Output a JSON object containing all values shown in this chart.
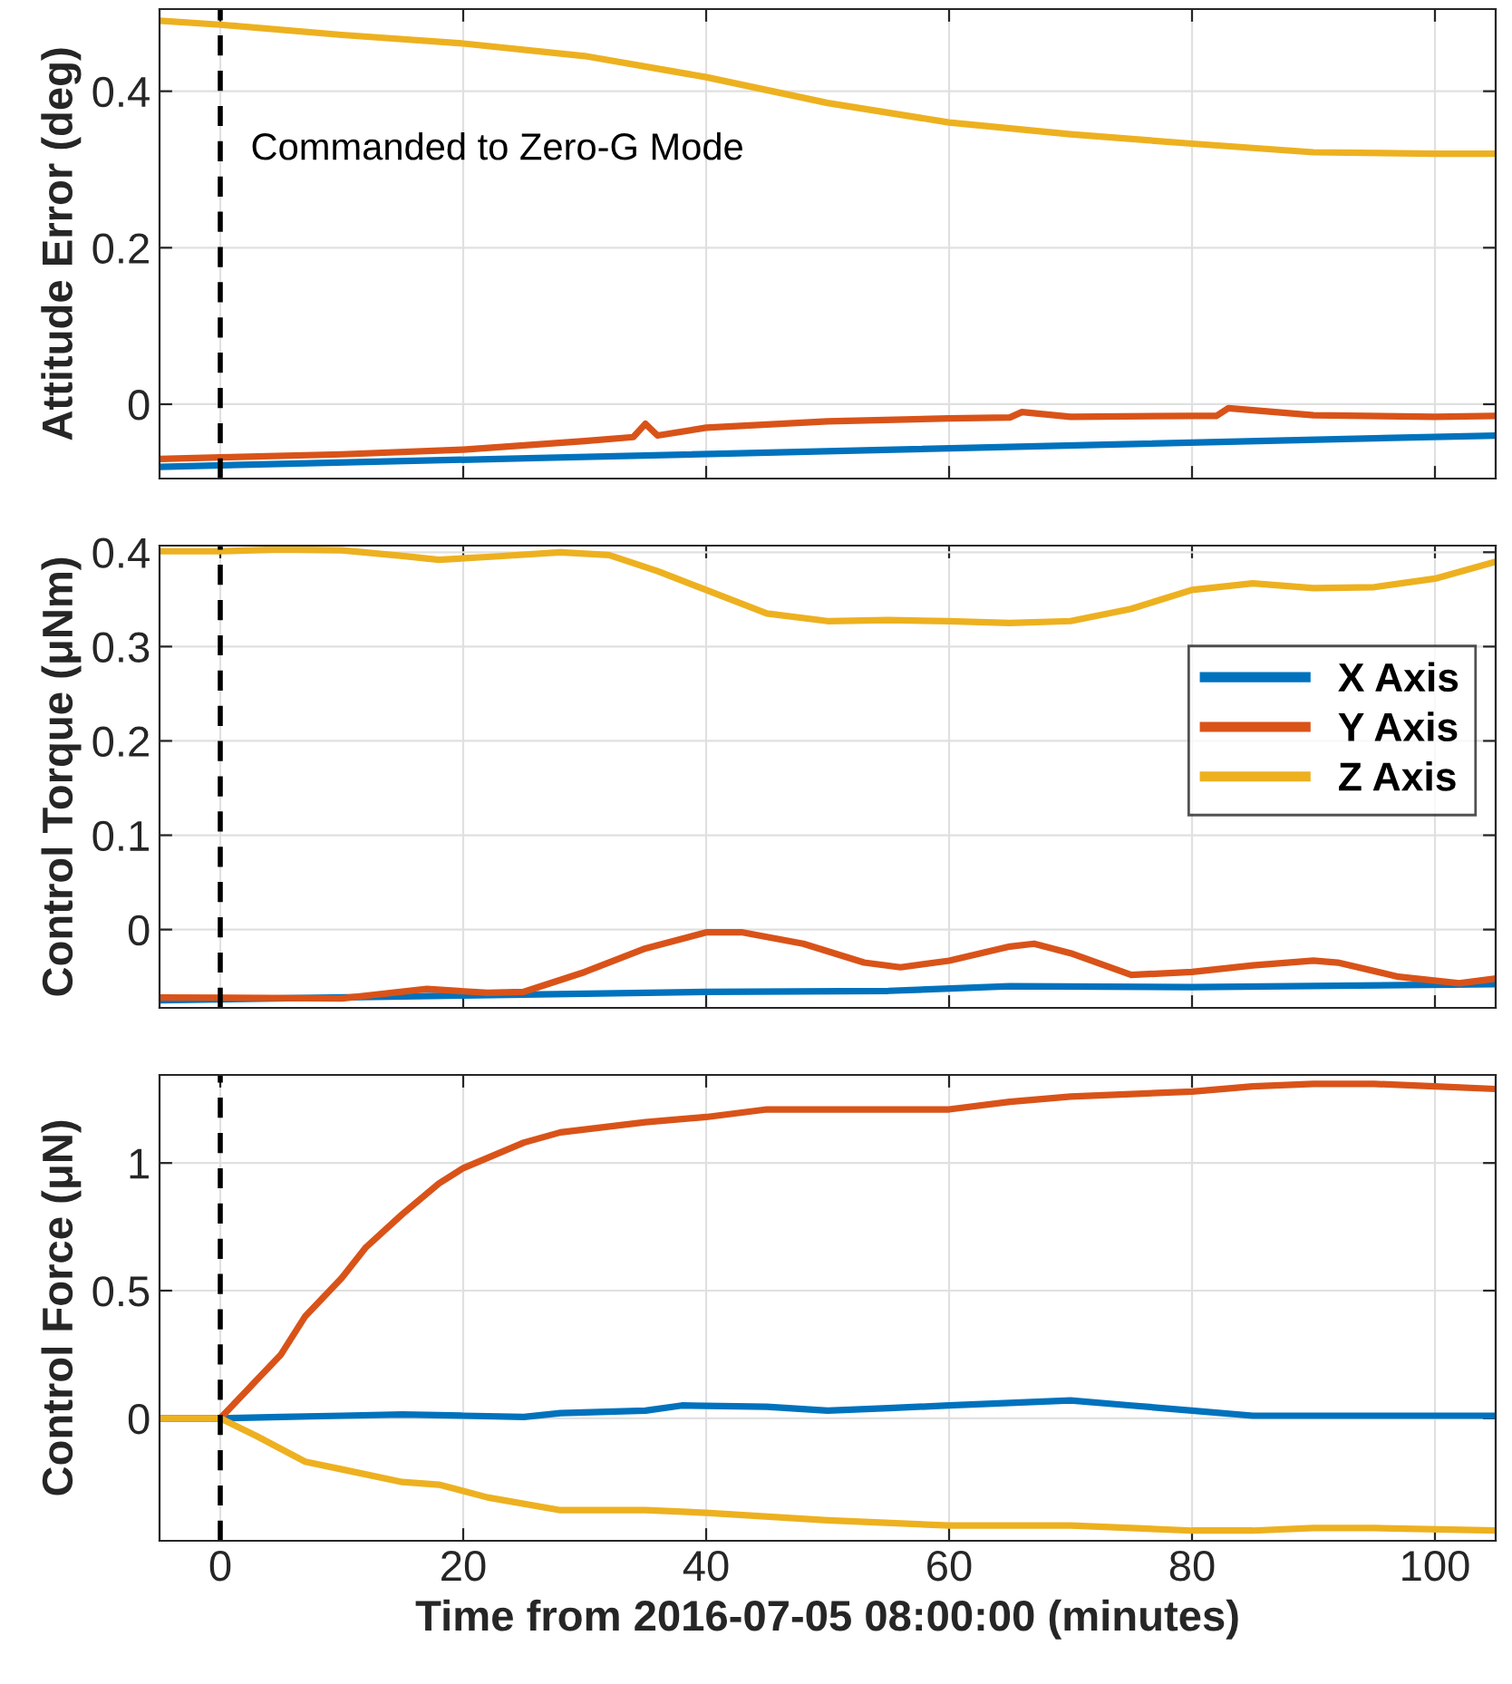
{
  "chart_data": [
    {
      "type": "line",
      "ylabel": "Attitude Error (deg)",
      "xlim": [
        -5,
        105
      ],
      "xticks": [
        {
          "value": 0,
          "label": null
        },
        {
          "value": 20,
          "label": null
        },
        {
          "value": 40,
          "label": null
        },
        {
          "value": 60,
          "label": null
        },
        {
          "value": 80,
          "label": null
        },
        {
          "value": 100,
          "label": null
        }
      ],
      "ylim": [
        -0.095,
        0.505
      ],
      "yticks": [
        0,
        0.2,
        0.4
      ],
      "grid": true,
      "tick_labels": "y",
      "ref_lines": [
        {
          "axis": "x",
          "value": 0,
          "label": "Commanded to Zero-G Mode",
          "color": "#000000",
          "line_style": "dashed"
        }
      ],
      "series": [
        {
          "color": "#0072bd",
          "x": [
            -5,
            105
          ],
          "values": [
            -0.08,
            -0.04
          ]
        },
        {
          "color": "#d95319",
          "x": [
            -5,
            0,
            10,
            20,
            30,
            34,
            35,
            36,
            40,
            50,
            60,
            65,
            66,
            70,
            80,
            82,
            83,
            90,
            100,
            105
          ],
          "values": [
            -0.07,
            -0.068,
            -0.064,
            -0.058,
            -0.047,
            -0.042,
            -0.025,
            -0.04,
            -0.03,
            -0.022,
            -0.018,
            -0.017,
            -0.01,
            -0.016,
            -0.015,
            -0.015,
            -0.005,
            -0.014,
            -0.016,
            -0.015
          ]
        },
        {
          "color": "#edb120",
          "x": [
            -5,
            0,
            10,
            20,
            30,
            40,
            50,
            60,
            70,
            80,
            90,
            100,
            105
          ],
          "values": [
            0.49,
            0.485,
            0.472,
            0.461,
            0.445,
            0.418,
            0.385,
            0.36,
            0.345,
            0.333,
            0.322,
            0.32,
            0.32
          ]
        }
      ]
    },
    {
      "type": "line",
      "ylabel": "Control Torque (μNm)",
      "xlim": [
        -5,
        105
      ],
      "xticks": [
        {
          "value": 0,
          "label": null
        },
        {
          "value": 20,
          "label": null
        },
        {
          "value": 40,
          "label": null
        },
        {
          "value": 60,
          "label": null
        },
        {
          "value": 80,
          "label": null
        },
        {
          "value": 100,
          "label": null
        }
      ],
      "ylim": [
        -0.083,
        0.407
      ],
      "yticks": [
        0,
        0.1,
        0.2,
        0.3,
        0.4
      ],
      "grid": true,
      "tick_labels": "y",
      "legend": "right",
      "ref_lines": [
        {
          "axis": "x",
          "value": 0,
          "color": "#000000",
          "line_style": "dashed"
        }
      ],
      "series": [
        {
          "name": "X Axis",
          "color": "#0072bd",
          "x": [
            -5,
            20,
            40,
            55,
            65,
            80,
            105
          ],
          "values": [
            -0.075,
            -0.07,
            -0.066,
            -0.065,
            -0.06,
            -0.061,
            -0.058
          ]
        },
        {
          "name": "Y Axis",
          "color": "#d95319",
          "x": [
            -5,
            10,
            17,
            22,
            25,
            30,
            35,
            40,
            43,
            48,
            53,
            56,
            60,
            65,
            67,
            70,
            75,
            80,
            85,
            90,
            92,
            97,
            102,
            105
          ],
          "values": [
            -0.072,
            -0.073,
            -0.063,
            -0.067,
            -0.066,
            -0.045,
            -0.02,
            -0.003,
            -0.003,
            -0.015,
            -0.035,
            -0.04,
            -0.033,
            -0.018,
            -0.015,
            -0.025,
            -0.048,
            -0.045,
            -0.038,
            -0.033,
            -0.035,
            -0.05,
            -0.057,
            -0.052
          ]
        },
        {
          "name": "Z Axis",
          "color": "#edb120",
          "x": [
            -5,
            0,
            5,
            10,
            15,
            18,
            22,
            28,
            32,
            36,
            40,
            45,
            50,
            55,
            60,
            65,
            70,
            75,
            80,
            85,
            90,
            95,
            100,
            105
          ],
          "values": [
            0.401,
            0.401,
            0.403,
            0.402,
            0.396,
            0.392,
            0.395,
            0.4,
            0.397,
            0.38,
            0.36,
            0.335,
            0.327,
            0.328,
            0.327,
            0.325,
            0.327,
            0.34,
            0.36,
            0.367,
            0.362,
            0.363,
            0.372,
            0.39
          ]
        }
      ]
    },
    {
      "type": "line",
      "ylabel": "Control Force (μN)",
      "xlabel": "Time from 2016-07-05 08:00:00 (minutes)",
      "xlim": [
        -5,
        105
      ],
      "xticks": [
        0,
        20,
        40,
        60,
        80,
        100
      ],
      "ylim": [
        -0.48,
        1.345
      ],
      "yticks": [
        0,
        0.5,
        1
      ],
      "grid": true,
      "ref_lines": [
        {
          "axis": "x",
          "value": 0,
          "color": "#000000",
          "line_style": "dashed"
        }
      ],
      "series": [
        {
          "color": "#0072bd",
          "x": [
            -5,
            0,
            5,
            10,
            15,
            20,
            25,
            28,
            35,
            38,
            45,
            50,
            55,
            60,
            70,
            75,
            80,
            85,
            90,
            105
          ],
          "values": [
            0,
            0,
            0.005,
            0.01,
            0.015,
            0.01,
            0.005,
            0.02,
            0.03,
            0.05,
            0.045,
            0.03,
            0.04,
            0.05,
            0.07,
            0.05,
            0.03,
            0.01,
            0.01,
            0.01
          ]
        },
        {
          "color": "#d95319",
          "x": [
            -5,
            0,
            2,
            5,
            7,
            10,
            12,
            15,
            18,
            20,
            25,
            28,
            35,
            40,
            45,
            50,
            60,
            65,
            70,
            80,
            85,
            90,
            95,
            100,
            105
          ],
          "values": [
            0,
            0,
            0.1,
            0.25,
            0.4,
            0.55,
            0.67,
            0.8,
            0.92,
            0.98,
            1.08,
            1.12,
            1.16,
            1.18,
            1.21,
            1.21,
            1.21,
            1.24,
            1.26,
            1.28,
            1.3,
            1.31,
            1.31,
            1.3,
            1.29
          ]
        },
        {
          "color": "#edb120",
          "x": [
            -5,
            0,
            3,
            7,
            10,
            15,
            18,
            22,
            28,
            35,
            40,
            50,
            60,
            70,
            75,
            80,
            85,
            90,
            95,
            105
          ],
          "values": [
            0,
            0,
            -0.07,
            -0.17,
            -0.2,
            -0.25,
            -0.26,
            -0.31,
            -0.36,
            -0.36,
            -0.37,
            -0.4,
            -0.42,
            -0.42,
            -0.43,
            -0.44,
            -0.44,
            -0.43,
            -0.43,
            -0.44
          ]
        }
      ]
    }
  ]
}
